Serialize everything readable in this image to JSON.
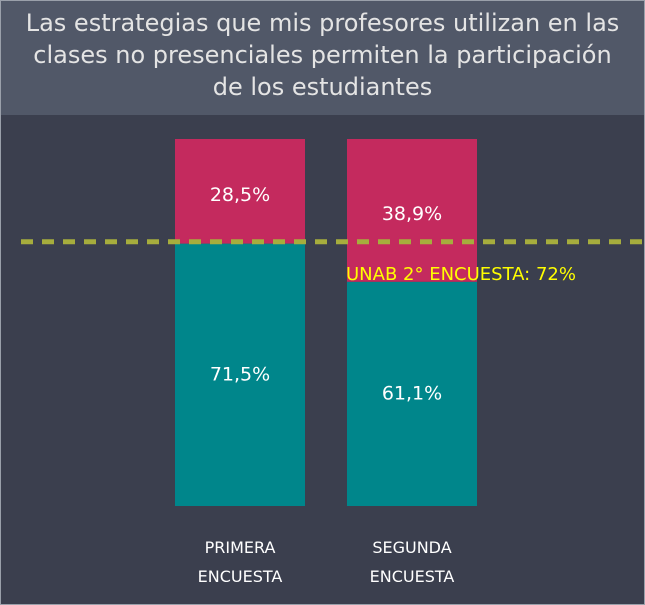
{
  "chart_data": {
    "type": "bar",
    "stacked": true,
    "title": "Las estrategias que mis profesores utilizan en las clases no presenciales permiten la participación de los estudiantes",
    "categories": [
      "PRIMERA ENCUESTA",
      "SEGUNDA ENCUESTA"
    ],
    "series": [
      {
        "color": "#00868b",
        "values": [
          71.5,
          61.1
        ],
        "value_labels": [
          "71,5%",
          "61,1%"
        ]
      },
      {
        "color": "#c42a5e",
        "values": [
          28.5,
          38.9
        ],
        "value_labels": [
          "28,5%",
          "38,9%"
        ]
      }
    ],
    "reference_line": {
      "value": 72,
      "label": "UNAB 2° ENCUESTA: 72%",
      "color": "#a6ad3d",
      "label_color": "#ffff00"
    }
  }
}
